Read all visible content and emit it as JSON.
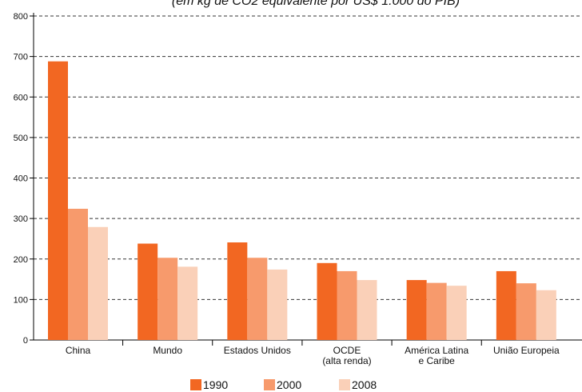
{
  "chart_data": {
    "type": "bar",
    "title": "",
    "xlabel": "",
    "ylabel": "",
    "ylim": [
      0,
      800
    ],
    "yticks": [
      0,
      100,
      200,
      300,
      400,
      500,
      600,
      700,
      800
    ],
    "grid": true,
    "legend_position": "bottom",
    "categories": [
      [
        "China"
      ],
      [
        "Mundo"
      ],
      [
        "Estados Unidos"
      ],
      [
        "OCDE",
        "(alta renda)"
      ],
      [
        "América Latina",
        "e Caribe"
      ],
      [
        "União Europeia"
      ]
    ],
    "series": [
      {
        "name": "1990",
        "color": "#F26722",
        "values": [
          688,
          238,
          241,
          190,
          148,
          170
        ]
      },
      {
        "name": "2000",
        "color": "#F79A6C",
        "values": [
          324,
          203,
          203,
          170,
          141,
          140
        ]
      },
      {
        "name": "2008",
        "color": "#FAD0B8",
        "values": [
          279,
          181,
          174,
          148,
          134,
          123
        ]
      }
    ]
  },
  "header": {
    "partial_title": "(em kg de CO2 equivalente por US$ 1.000 do PIB)"
  }
}
